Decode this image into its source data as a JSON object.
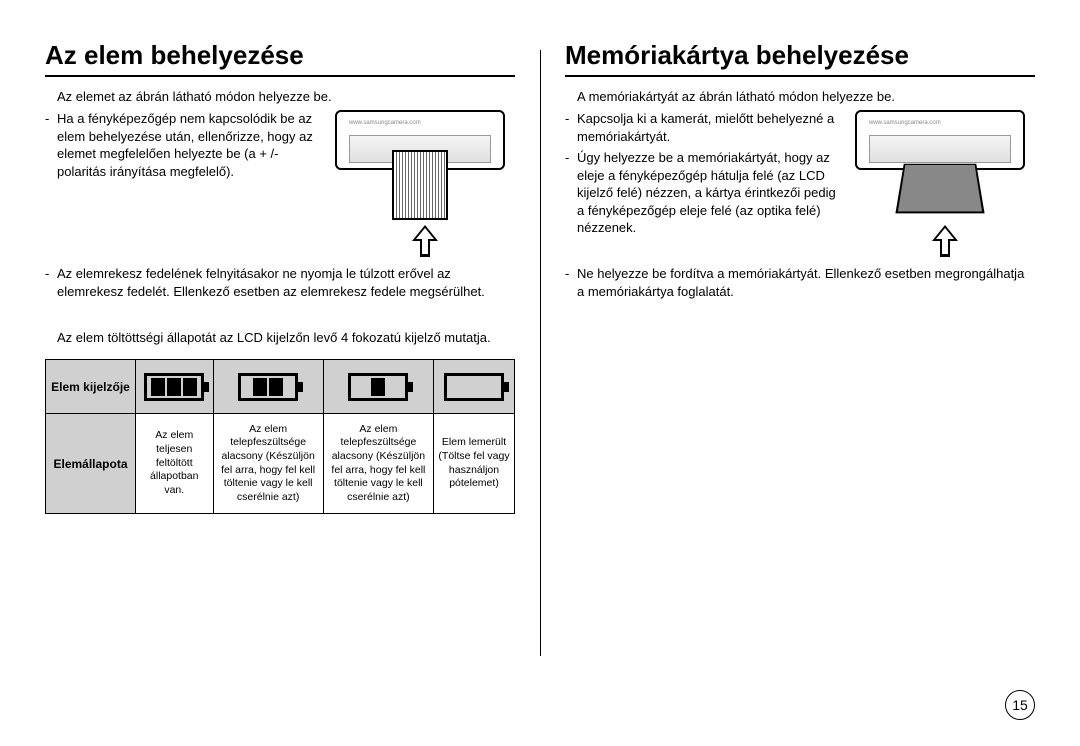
{
  "left": {
    "title": "Az elem behelyezése",
    "intro": "Az elemet az ábrán látható módon helyezze be.",
    "bullets": [
      "Ha a fényképezőgép nem kapcsolódik be az elem behelyezése után, ellenőrizze, hogy az elemet megfelelően helyezte be (a + /- polaritás irányítása megfelelő).",
      "Az elemrekesz fedelének felnyitásakor ne nyomja le túlzott erővel az elemrekesz fedelét. Ellenkező esetben az elemrekesz fedele megsérülhet."
    ],
    "device_label": "www.samsungcamera.com",
    "table_intro": "Az elem töltöttségi állapotát az LCD kijelzőn levő 4 fokozatú kijelző mutatja.",
    "row1_header": "Elem kijelzője",
    "row2_header": "Elemállapota",
    "battery_levels": [
      3,
      2,
      1,
      0
    ],
    "descriptions": [
      "Az elem teljesen feltöltött állapotban van.",
      "Az elem telepfeszültsége alacsony (Készüljön fel arra, hogy fel kell töltenie vagy le kell cserélnie azt)",
      "Az elem telepfeszültsége alacsony (Készüljön fel arra, hogy fel kell töltenie vagy le kell cserélnie azt)",
      "Elem lemerült (Töltse fel vagy használjon pótelemet)"
    ]
  },
  "right": {
    "title": "Memóriakártya behelyezése",
    "intro": "A memóriakártyát az ábrán látható módon helyezze be.",
    "bullets": [
      "Kapcsolja ki a kamerát, mielőtt behelyezné a memóriakártyát.",
      "Úgy helyezze be a memóriakártyát, hogy az eleje a fényképezőgép hátulja felé (az LCD kijelző felé) nézzen, a kártya érintkezői pedig a fényképezőgép eleje felé (az optika felé) nézzenek.",
      "Ne helyezze be fordítva a memóriakártyát. Ellenkező esetben megrongálhatja a memóriakártya foglalatát."
    ],
    "device_label": "www.samsungcamera.com"
  },
  "page_number": "15"
}
